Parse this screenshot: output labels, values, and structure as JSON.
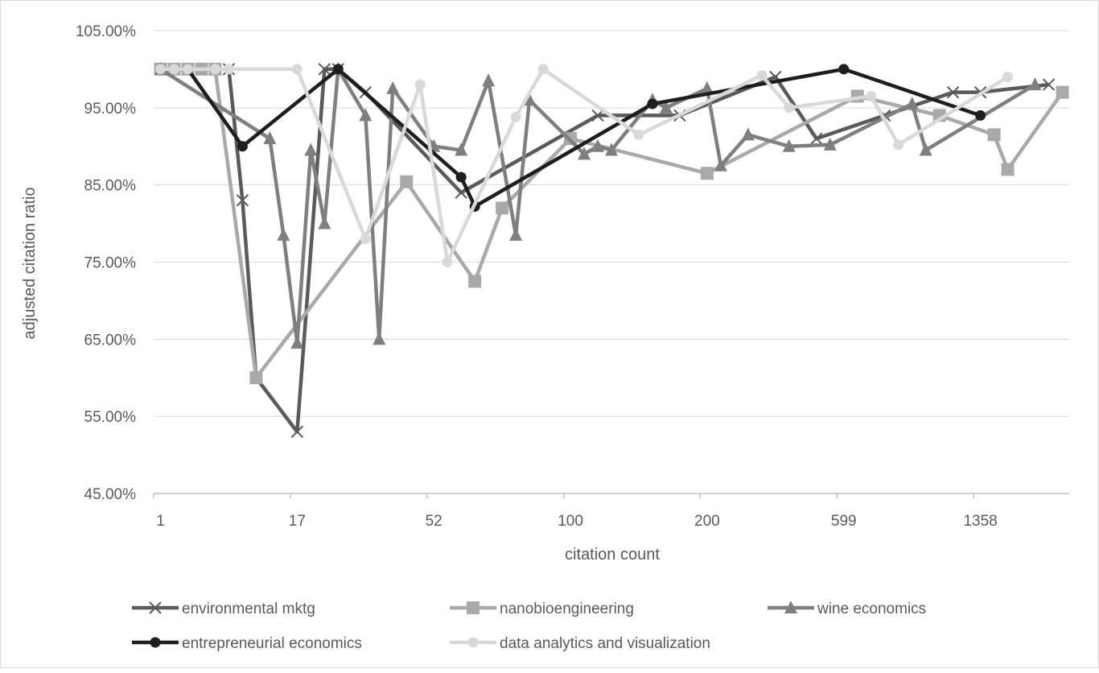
{
  "chart_data": {
    "type": "line",
    "xlabel": "citation count",
    "ylabel": "adjusted citation ratio",
    "ylim": [
      45,
      105
    ],
    "y_ticks": [
      "45.00%",
      "55.00%",
      "65.00%",
      "75.00%",
      "85.00%",
      "95.00%",
      "105.00%"
    ],
    "x_axis_scale": "categorical (labels every 10th category, 67 categories)",
    "x_categories": [
      "1",
      "17",
      "52",
      "100",
      "200",
      "599",
      "1358"
    ],
    "x_category_count": 67,
    "grid": "horizontal",
    "legend_position": "bottom",
    "series": [
      {
        "name": "environmental mktg",
        "color": "#5a5a5a",
        "marker": "x",
        "points": [
          [
            0,
            100
          ],
          [
            3,
            100
          ],
          [
            4,
            100
          ],
          [
            5,
            100
          ],
          [
            6,
            83
          ],
          [
            7,
            60
          ],
          [
            10,
            53
          ],
          [
            12,
            100
          ],
          [
            13,
            100
          ],
          [
            15,
            97
          ],
          [
            22,
            84
          ],
          [
            32,
            94
          ],
          [
            38,
            94
          ],
          [
            45,
            99
          ],
          [
            48,
            91
          ],
          [
            53,
            94
          ],
          [
            58,
            97
          ],
          [
            60,
            97
          ],
          [
            65,
            98
          ]
        ]
      },
      {
        "name": "nanobioengineering",
        "color": "#a9a9a9",
        "marker": "square",
        "points": [
          [
            0,
            100
          ],
          [
            1,
            100
          ],
          [
            2,
            100
          ],
          [
            3,
            100
          ],
          [
            4,
            100
          ],
          [
            7,
            60
          ],
          [
            18,
            85.4
          ],
          [
            23,
            72.5
          ],
          [
            25,
            82
          ],
          [
            30,
            91
          ],
          [
            40,
            86.5
          ],
          [
            51,
            96.5
          ],
          [
            57,
            94
          ],
          [
            61,
            91.5
          ],
          [
            62,
            87
          ],
          [
            66,
            97
          ]
        ]
      },
      {
        "name": "wine economics",
        "color": "#7f7f7f",
        "marker": "triangle",
        "points": [
          [
            0,
            100
          ],
          [
            8,
            91
          ],
          [
            9,
            78.5
          ],
          [
            10,
            64.5
          ],
          [
            11,
            89.5
          ],
          [
            12,
            80
          ],
          [
            13,
            100
          ],
          [
            15,
            94
          ],
          [
            16,
            65
          ],
          [
            17,
            97.5
          ],
          [
            20,
            90
          ],
          [
            22,
            89.5
          ],
          [
            24,
            98.5
          ],
          [
            26,
            78.5
          ],
          [
            27,
            96
          ],
          [
            31,
            89
          ],
          [
            32,
            90
          ],
          [
            33,
            89.5
          ],
          [
            36,
            96
          ],
          [
            37,
            95
          ],
          [
            40,
            97.5
          ],
          [
            41,
            87.5
          ],
          [
            43,
            91.5
          ],
          [
            46,
            90
          ],
          [
            49,
            90.2
          ],
          [
            55,
            95.5
          ],
          [
            56,
            89.5
          ],
          [
            64,
            98
          ]
        ]
      },
      {
        "name": "entrepreneurial economics",
        "color": "#1e1e1e",
        "marker": "circle",
        "points": [
          [
            0,
            100
          ],
          [
            2,
            100
          ],
          [
            6,
            90
          ],
          [
            13,
            100
          ],
          [
            22,
            86
          ],
          [
            23,
            82.2
          ],
          [
            36,
            95.5
          ],
          [
            50,
            100
          ],
          [
            60,
            94
          ]
        ]
      },
      {
        "name": "data analytics and visualization",
        "color": "#d9d9d9",
        "marker": "circle",
        "points": [
          [
            0,
            100
          ],
          [
            1,
            100
          ],
          [
            2,
            100
          ],
          [
            4,
            100
          ],
          [
            5,
            100
          ],
          [
            10,
            100
          ],
          [
            15,
            78
          ],
          [
            19,
            98
          ],
          [
            21,
            75
          ],
          [
            26,
            93.8
          ],
          [
            28,
            100
          ],
          [
            35,
            91.5
          ],
          [
            44,
            99.2
          ],
          [
            46,
            95
          ],
          [
            52,
            96.5
          ],
          [
            54,
            90.2
          ],
          [
            62,
            99
          ]
        ]
      }
    ]
  }
}
